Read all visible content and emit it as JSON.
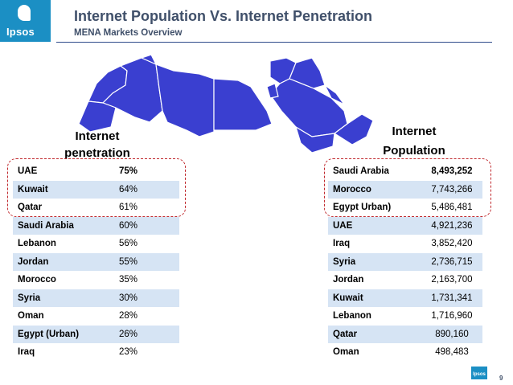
{
  "logo": {
    "text": "Ipsos"
  },
  "header": {
    "title": "Internet Population Vs. Internet Penetration",
    "subtitle": "MENA Markets Overview"
  },
  "left_table": {
    "heading": "Internet penetration",
    "rows": [
      {
        "country": "UAE",
        "value": "75%"
      },
      {
        "country": "Kuwait",
        "value": "64%"
      },
      {
        "country": "Qatar",
        "value": "61%"
      },
      {
        "country": "Saudi Arabia",
        "value": "60%"
      },
      {
        "country": "Lebanon",
        "value": "56%"
      },
      {
        "country": "Jordan",
        "value": "55%"
      },
      {
        "country": "Morocco",
        "value": "35%"
      },
      {
        "country": "Syria",
        "value": "30%"
      },
      {
        "country": "Oman",
        "value": "28%"
      },
      {
        "country": "Egypt (Urban)",
        "value": "26%"
      },
      {
        "country": "Iraq",
        "value": "23%"
      }
    ]
  },
  "right_table": {
    "heading": "Internet Population",
    "rows": [
      {
        "country": "Saudi Arabia",
        "value": "8,493,252"
      },
      {
        "country": "Morocco",
        "value": "7,743,266"
      },
      {
        "country": "Egypt Urban)",
        "value": "5,486,481"
      },
      {
        "country": "UAE",
        "value": "4,921,236"
      },
      {
        "country": "Iraq",
        "value": "3,852,420"
      },
      {
        "country": "Syria",
        "value": "2,736,715"
      },
      {
        "country": "Jordan",
        "value": "2,163,700"
      },
      {
        "country": "Kuwait",
        "value": "1,731,341"
      },
      {
        "country": "Lebanon",
        "value": "1,716,960"
      },
      {
        "country": "Qatar",
        "value": "890,160"
      },
      {
        "country": "Oman",
        "value": "498,483"
      }
    ]
  },
  "footer": {
    "logo_text": "Ipsos",
    "page_number": "9"
  },
  "colors": {
    "brand_blue": "#1b8fc4",
    "title": "#40506a",
    "map_fill": "#3a3fd0",
    "row_alt": "#d6e4f4",
    "highlight": "#c0282d"
  }
}
